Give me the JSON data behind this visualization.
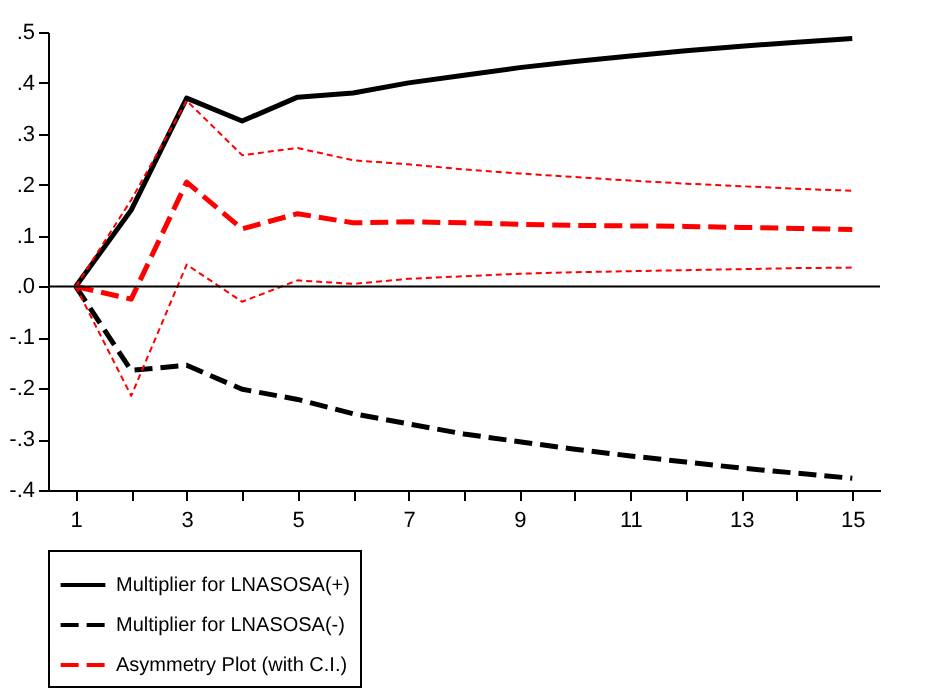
{
  "chart_data": {
    "type": "line",
    "x": [
      1,
      2,
      3,
      4,
      5,
      6,
      7,
      8,
      9,
      10,
      11,
      12,
      13,
      14,
      15
    ],
    "series": [
      {
        "name": "Multiplier for LNASOSA(+)",
        "color": "#000000",
        "line_style": "solid",
        "values": [
          0,
          0.15,
          0.37,
          0.325,
          0.372,
          0.38,
          0.4,
          0.415,
          0.43,
          0.442,
          0.453,
          0.463,
          0.472,
          0.48,
          0.487
        ]
      },
      {
        "name": "Multiplier for LNASOSA(-)",
        "color": "#000000",
        "line_style": "dashed",
        "values": [
          0,
          -0.165,
          -0.155,
          -0.202,
          -0.222,
          -0.25,
          -0.27,
          -0.29,
          -0.305,
          -0.32,
          -0.333,
          -0.345,
          -0.357,
          -0.367,
          -0.377
        ]
      },
      {
        "name": "Asymmetry Plot (with C.I.)",
        "color": "#ff0000",
        "line_style": "dashed",
        "values": [
          0,
          -0.025,
          0.205,
          0.113,
          0.143,
          0.125,
          0.127,
          0.125,
          0.122,
          0.12,
          0.119,
          0.118,
          0.116,
          0.114,
          0.112
        ]
      },
      {
        "color": "#ff0000",
        "line_style": "dotted",
        "values": [
          0,
          0.17,
          0.365,
          0.258,
          0.272,
          0.248,
          0.24,
          0.23,
          0.222,
          0.215,
          0.208,
          0.202,
          0.197,
          0.192,
          0.188
        ]
      },
      {
        "color": "#ff0000",
        "line_style": "dotted",
        "values": [
          0,
          -0.215,
          0.043,
          -0.03,
          0.012,
          0.005,
          0.015,
          0.02,
          0.025,
          0.028,
          0.03,
          0.032,
          0.034,
          0.036,
          0.037
        ]
      }
    ],
    "xlim": [
      0.5,
      15.5
    ],
    "xticks": [
      1,
      {
        "value": 2,
        "label": null
      },
      3,
      {
        "value": 4,
        "label": null
      },
      5,
      {
        "value": 6,
        "label": null
      },
      7,
      {
        "value": 8,
        "label": null
      },
      9,
      {
        "value": 10,
        "label": null
      },
      11,
      {
        "value": 12,
        "label": null
      },
      13,
      {
        "value": 14,
        "label": null
      },
      15
    ],
    "ylim": [
      -0.4,
      0.5
    ],
    "yticks": [
      {
        "value": -0.4,
        "label": "-.4"
      },
      {
        "value": -0.3,
        "label": "-.3"
      },
      {
        "value": -0.2,
        "label": "-.2"
      },
      {
        "value": -0.1,
        "label": "-.1"
      },
      {
        "value": 0,
        "label": ".0"
      },
      {
        "value": 0.1,
        "label": ".1"
      },
      {
        "value": 0.2,
        "label": ".2"
      },
      {
        "value": 0.3,
        "label": ".3"
      },
      {
        "value": 0.4,
        "label": ".4"
      },
      {
        "value": 0.5,
        "label": ".5"
      }
    ],
    "ref_lines": [
      {
        "axis": "y",
        "value": 0,
        "color": "#000000"
      }
    ],
    "grid": false,
    "legend": "bottom"
  }
}
